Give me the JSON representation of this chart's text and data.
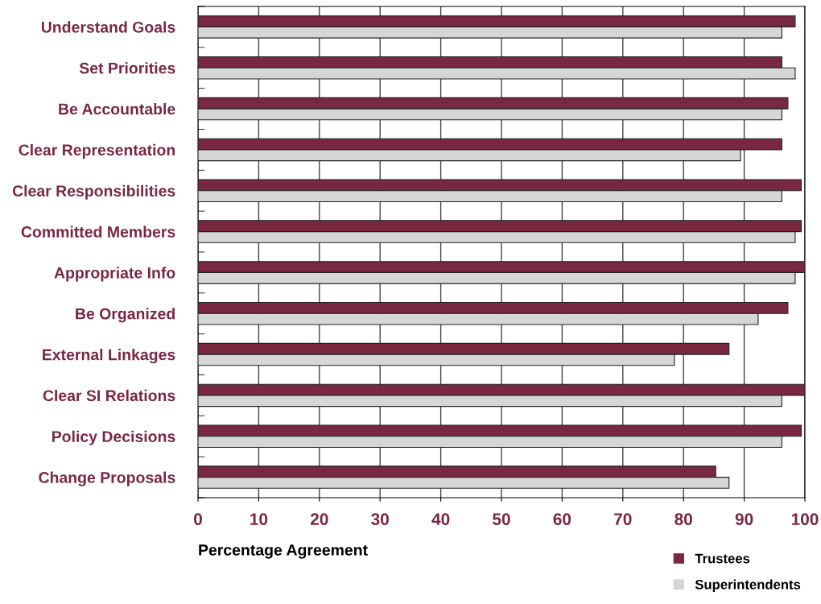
{
  "chart_data": {
    "type": "bar",
    "orientation": "horizontal",
    "xlabel": "Percentage Agreement",
    "categories": [
      "Understand Goals",
      "Set Priorities",
      "Be Accountable",
      "Clear Representation",
      "Clear Responsibilities",
      "Committed Members",
      "Appropriate Info",
      "Be Organized",
      "External Linkages",
      "Clear SI Relations",
      "Policy Decisions",
      "Change Proposals"
    ],
    "series": [
      {
        "name": "Trustees",
        "color": "#7a2842",
        "values": [
          98.4,
          96.2,
          97.2,
          96.2,
          99.4,
          99.4,
          100,
          97.2,
          87.5,
          100,
          99.4,
          85.3
        ]
      },
      {
        "name": "Superintendents",
        "color": "#d6d6d6",
        "values": [
          96.2,
          98.4,
          96.2,
          89.4,
          96.2,
          98.4,
          98.4,
          92.3,
          78.5,
          96.2,
          96.2,
          87.5
        ]
      }
    ],
    "xlim": [
      0,
      100
    ],
    "xticks": [
      0,
      10,
      20,
      30,
      40,
      50,
      60,
      70,
      80,
      90,
      100
    ],
    "grid": "x",
    "legend": "bottom right"
  }
}
